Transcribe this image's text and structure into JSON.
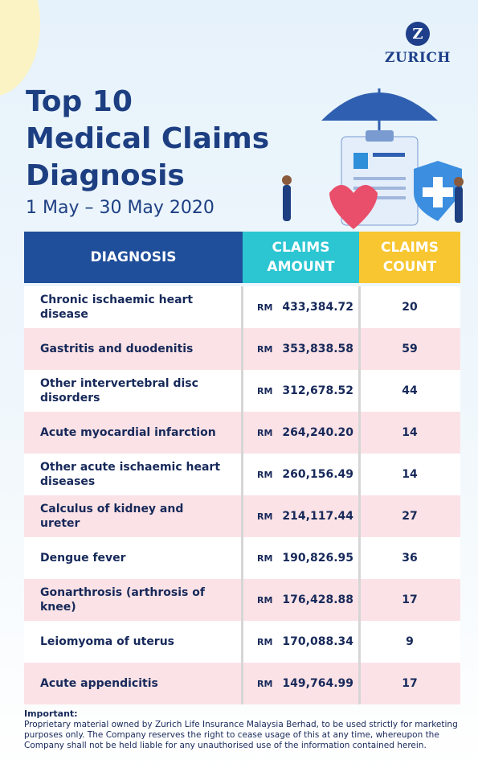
{
  "header": {
    "logo": "ZURICH",
    "title_lines": [
      "Top 10",
      "Medical Claims",
      "Diagnosis"
    ],
    "date_range": "1 May – 30 May 2020"
  },
  "table": {
    "columns": [
      "DIAGNOSIS",
      "CLAIMS AMOUNT",
      "CLAIMS COUNT"
    ],
    "rows": [
      {
        "diagnosis": "Chronic ischaemic heart disease",
        "currency": "RM",
        "amount": "433,384.72",
        "count": 20
      },
      {
        "diagnosis": "Gastritis and duodenitis",
        "currency": "RM",
        "amount": "353,838.58",
        "count": 59
      },
      {
        "diagnosis": "Other intervertebral disc disorders",
        "currency": "RM",
        "amount": "312,678.52",
        "count": 44
      },
      {
        "diagnosis": "Acute myocardial infarction",
        "currency": "RM",
        "amount": "264,240.20",
        "count": 14
      },
      {
        "diagnosis": "Other acute ischaemic heart diseases",
        "currency": "RM",
        "amount": "260,156.49",
        "count": 14
      },
      {
        "diagnosis": "Calculus of kidney and ureter",
        "currency": "RM",
        "amount": "214,117.44",
        "count": 27
      },
      {
        "diagnosis": "Dengue fever",
        "currency": "RM",
        "amount": "190,826.95",
        "count": 36
      },
      {
        "diagnosis": "Gonarthrosis (arthrosis of knee)",
        "currency": "RM",
        "amount": "176,428.88",
        "count": 17
      },
      {
        "diagnosis": "Leiomyoma of uterus",
        "currency": "RM",
        "amount": "170,088.34",
        "count": 9
      },
      {
        "diagnosis": "Acute appendicitis",
        "currency": "RM",
        "amount": "149,764.99",
        "count": 17
      }
    ]
  },
  "footer": {
    "label": "Important:",
    "text": "Proprietary material owned by Zurich Life Insurance Malaysia Berhad, to be used strictly for marketing purposes only. The Company reserves the right to cease usage of this at any time, whereupon the Company shall not be held liable for any unauthorised use of the information contained herein."
  }
}
